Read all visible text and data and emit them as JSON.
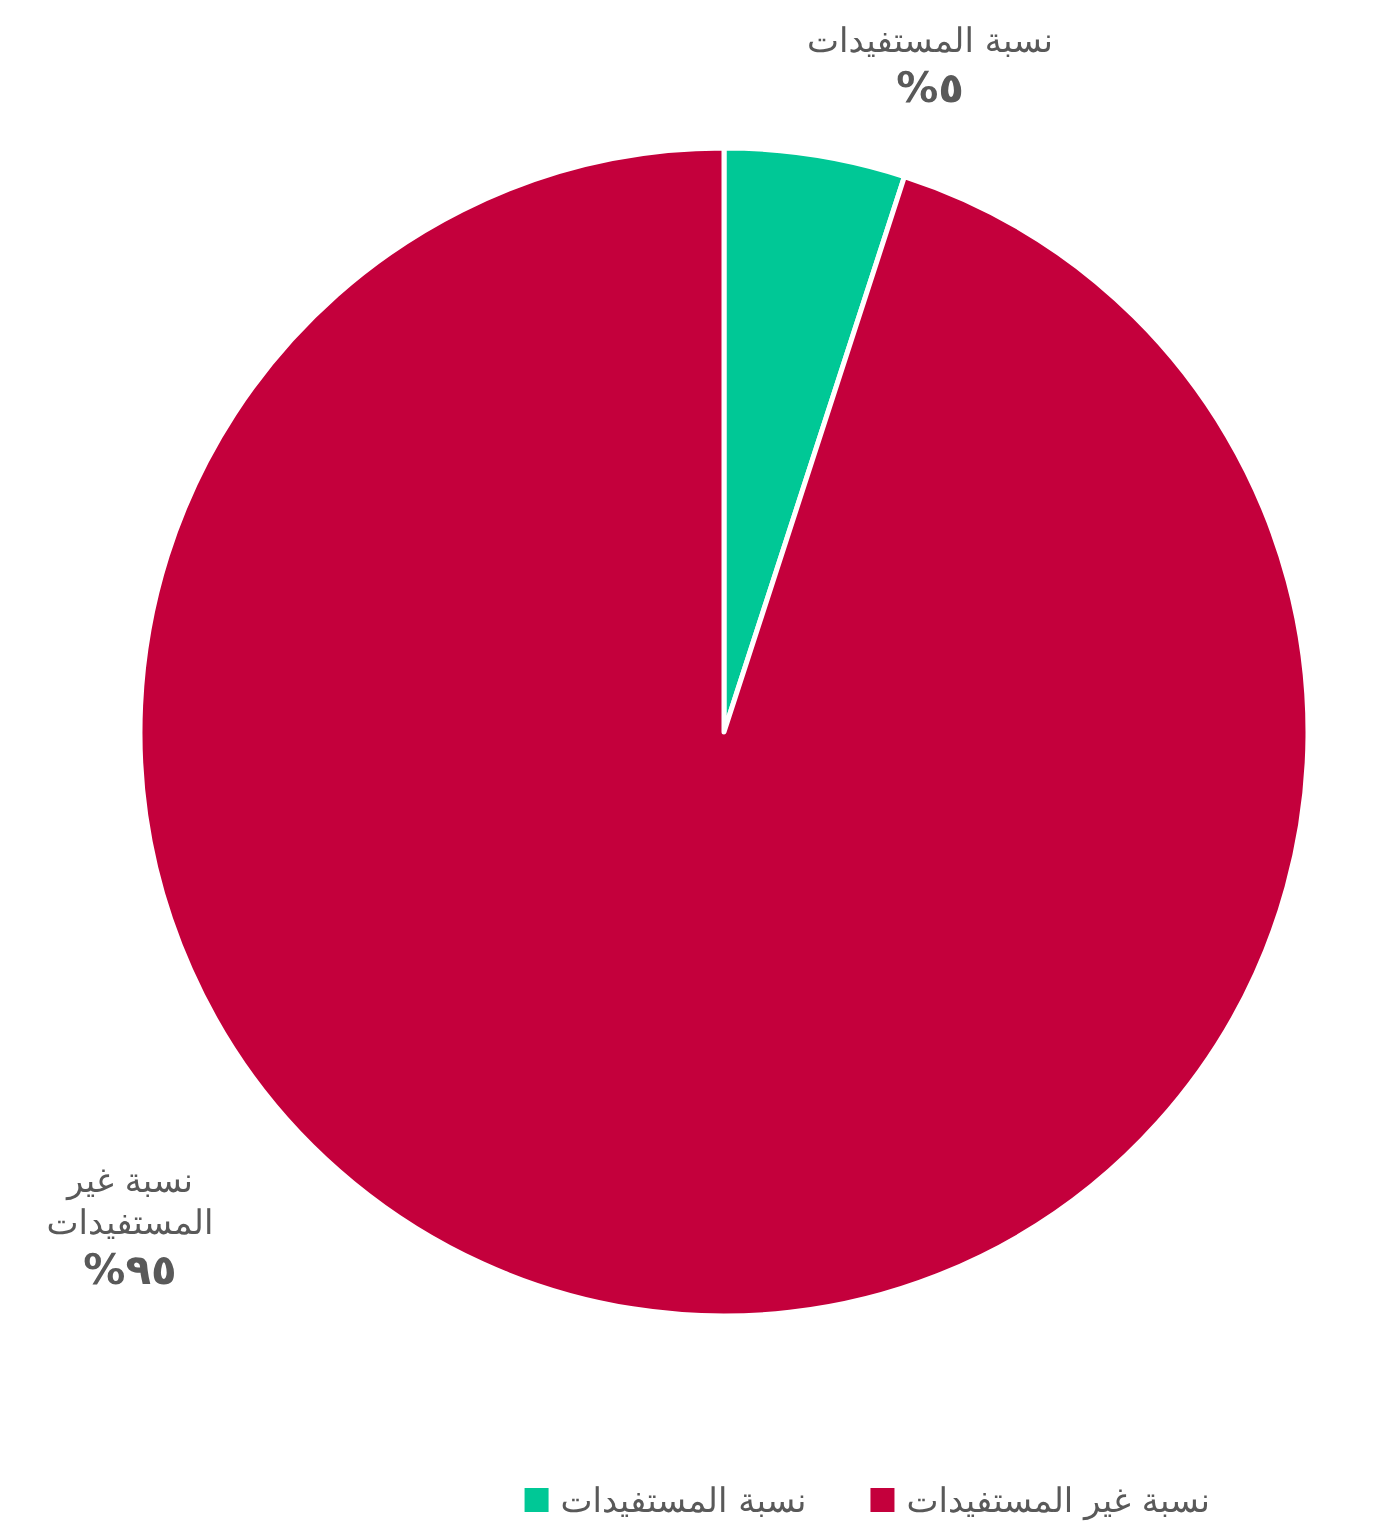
{
  "chart_data": {
    "type": "pie",
    "categories": [
      "نسبة المستفيدات",
      "نسبة غير المستفيدات"
    ],
    "values": [
      5,
      95
    ],
    "colors": [
      "#00c896",
      "#c4003c"
    ],
    "value_labels": [
      "%٥",
      "%٩٥"
    ],
    "legend": "bottom"
  }
}
